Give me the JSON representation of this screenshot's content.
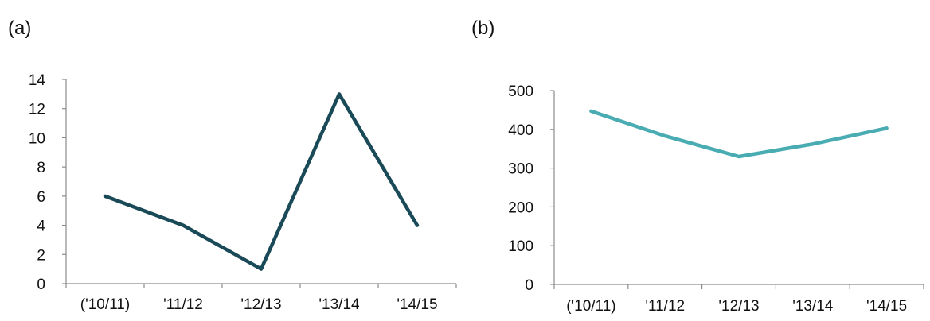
{
  "chart_data": [
    {
      "panel_label": "(a)",
      "type": "line",
      "categories": [
        "('10/11)",
        "'11/12",
        "'12/13",
        "'13/14",
        "'14/15"
      ],
      "series": [
        {
          "values": [
            6,
            4,
            1,
            13,
            4
          ],
          "color": "#1a4a57"
        }
      ],
      "ylim": [
        0,
        14
      ],
      "yticks": [
        "0",
        "2",
        "4",
        "6",
        "8",
        "10",
        "12",
        "14"
      ],
      "grid": false,
      "legend": "none"
    },
    {
      "panel_label": "(b)",
      "type": "line",
      "categories": [
        "('10/11)",
        "'11/12",
        "'12/13",
        "'13/14",
        "'14/15"
      ],
      "series": [
        {
          "values": [
            447,
            383,
            330,
            362,
            403
          ],
          "color": "#4aacb3"
        }
      ],
      "ylim": [
        0,
        500
      ],
      "yticks": [
        "0",
        "100",
        "200",
        "300",
        "400",
        "500"
      ],
      "grid": false,
      "legend": "none"
    }
  ]
}
